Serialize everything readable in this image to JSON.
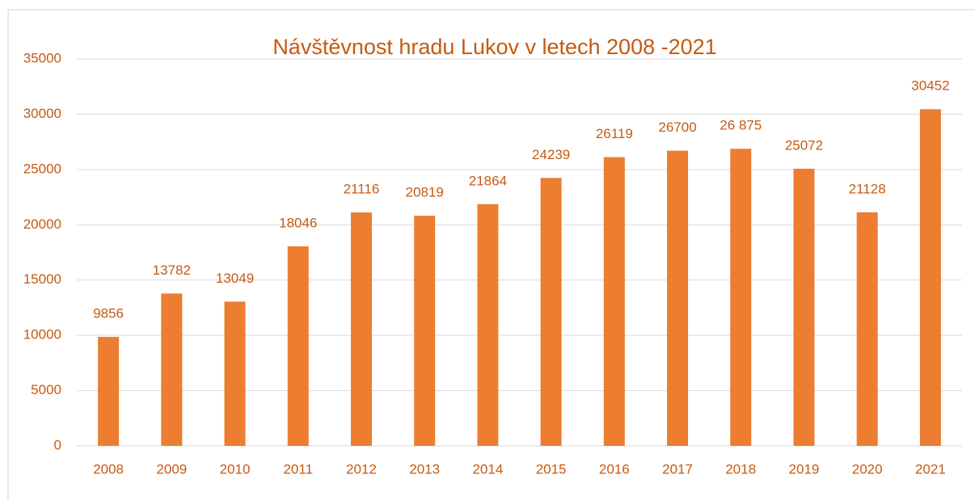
{
  "chart_data": {
    "type": "bar",
    "title": "Návštěvnost hradu Lukov v letech 2008 -2021",
    "categories": [
      "2008",
      "2009",
      "2010",
      "2011",
      "2012",
      "2013",
      "2014",
      "2015",
      "2016",
      "2017",
      "2018",
      "2019",
      "2020",
      "2021"
    ],
    "values": [
      9856,
      13782,
      13049,
      18046,
      21116,
      20819,
      21864,
      24239,
      26119,
      26700,
      26875,
      25072,
      21128,
      30452
    ],
    "value_labels": [
      "9856",
      "13782",
      "13049",
      "18046",
      "21116",
      "20819",
      "21864",
      "24239",
      "26119",
      "26700",
      "26 875",
      "25072",
      "21128",
      "30452"
    ],
    "color": "#ed7d31",
    "ylim": [
      0,
      35000
    ],
    "yticks": [
      0,
      5000,
      10000,
      15000,
      20000,
      25000,
      30000,
      35000
    ],
    "grid": true
  }
}
